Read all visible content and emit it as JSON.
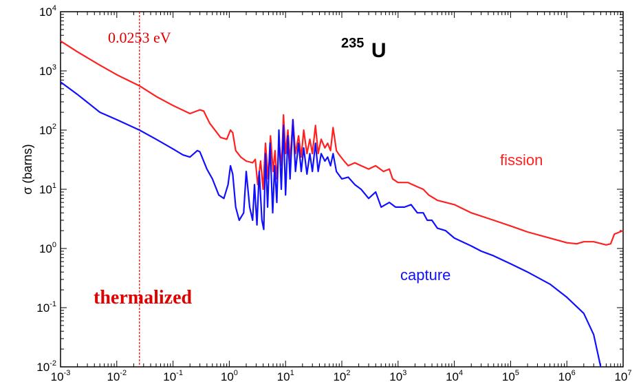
{
  "chart_data": {
    "type": "line",
    "title_mass_number": "235",
    "title_element": "U",
    "xlabel": "",
    "ylabel": "σ (barns)",
    "x_scale": "log",
    "y_scale": "log",
    "xlim": [
      0.001,
      10000000
    ],
    "ylim": [
      0.01,
      10000
    ],
    "x_tick_labels": [
      {
        "base": "10",
        "exp": "-3",
        "value": 0.001
      },
      {
        "base": "10",
        "exp": "-2",
        "value": 0.01
      },
      {
        "base": "10",
        "exp": "-1",
        "value": 0.1
      },
      {
        "base": "10",
        "exp": "0",
        "value": 1
      },
      {
        "base": "10",
        "exp": "1",
        "value": 10
      },
      {
        "base": "10",
        "exp": "2",
        "value": 100
      },
      {
        "base": "10",
        "exp": "3",
        "value": 1000
      },
      {
        "base": "10",
        "exp": "4",
        "value": 10000
      },
      {
        "base": "10",
        "exp": "5",
        "value": 100000
      },
      {
        "base": "10",
        "exp": "6",
        "value": 1000000
      },
      {
        "base": "10",
        "exp": "7",
        "value": 10000000
      }
    ],
    "y_tick_labels": [
      {
        "base": "10",
        "exp": "-2",
        "value": 0.01
      },
      {
        "base": "10",
        "exp": "-1",
        "value": 0.1
      },
      {
        "base": "10",
        "exp": "0",
        "value": 1
      },
      {
        "base": "10",
        "exp": "1",
        "value": 10
      },
      {
        "base": "10",
        "exp": "2",
        "value": 100
      },
      {
        "base": "10",
        "exp": "3",
        "value": 1000
      },
      {
        "base": "10",
        "exp": "4",
        "value": 10000
      }
    ],
    "reference_line": {
      "x": 0.0253,
      "label": "0.0253 eV",
      "color": "#e00000",
      "style": "dashed"
    },
    "annotation": {
      "text": "thermalized",
      "color": "#e00000"
    },
    "series": [
      {
        "name": "fission",
        "color": "#ff2020",
        "points": [
          [
            0.001,
            3200
          ],
          [
            0.002,
            2100
          ],
          [
            0.005,
            1250
          ],
          [
            0.01,
            860
          ],
          [
            0.0253,
            560
          ],
          [
            0.05,
            370
          ],
          [
            0.1,
            260
          ],
          [
            0.2,
            190
          ],
          [
            0.3,
            220
          ],
          [
            0.35,
            210
          ],
          [
            0.45,
            130
          ],
          [
            0.7,
            75
          ],
          [
            0.9,
            70
          ],
          [
            1.05,
            100
          ],
          [
            1.15,
            90
          ],
          [
            1.3,
            45
          ],
          [
            1.6,
            35
          ],
          [
            2.0,
            30
          ],
          [
            2.6,
            28
          ],
          [
            2.9,
            32
          ],
          [
            3.2,
            12
          ],
          [
            3.6,
            30
          ],
          [
            4.0,
            10
          ],
          [
            4.4,
            60
          ],
          [
            4.9,
            15
          ],
          [
            5.4,
            80
          ],
          [
            6.0,
            20
          ],
          [
            6.5,
            45
          ],
          [
            7.0,
            15
          ],
          [
            7.7,
            60
          ],
          [
            8.5,
            25
          ],
          [
            9.2,
            180
          ],
          [
            10.0,
            40
          ],
          [
            11.0,
            100
          ],
          [
            12.0,
            30
          ],
          [
            13.5,
            150
          ],
          [
            15.0,
            40
          ],
          [
            17.0,
            80
          ],
          [
            19.0,
            35
          ],
          [
            21.0,
            100
          ],
          [
            24.0,
            40
          ],
          [
            27.0,
            70
          ],
          [
            30.0,
            40
          ],
          [
            34.0,
            120
          ],
          [
            38.0,
            40
          ],
          [
            43.0,
            70
          ],
          [
            50.0,
            50
          ],
          [
            56.0,
            60
          ],
          [
            63.0,
            45
          ],
          [
            70.0,
            110
          ],
          [
            80.0,
            45
          ],
          [
            90.0,
            38
          ],
          [
            110.0,
            30
          ],
          [
            130.0,
            25
          ],
          [
            170.0,
            28
          ],
          [
            220.0,
            25
          ],
          [
            300.0,
            22
          ],
          [
            400.0,
            25
          ],
          [
            550.0,
            20
          ],
          [
            700.0,
            22
          ],
          [
            800.0,
            15
          ],
          [
            1000.0,
            13
          ],
          [
            1500.0,
            13
          ],
          [
            2200.0,
            11
          ],
          [
            2800.0,
            10
          ],
          [
            3500.0,
            8
          ],
          [
            5000.0,
            6.5
          ],
          [
            10000.0,
            5.5
          ],
          [
            20000.0,
            4
          ],
          [
            50000.0,
            3
          ],
          [
            100000.0,
            2.4
          ],
          [
            200000.0,
            1.9
          ],
          [
            500000.0,
            1.5
          ],
          [
            1000000.0,
            1.25
          ],
          [
            1500000.0,
            1.2
          ],
          [
            2000000.0,
            1.3
          ],
          [
            3000000.0,
            1.3
          ],
          [
            5000000.0,
            1.15
          ],
          [
            6000000.0,
            1.2
          ],
          [
            7000000.0,
            1.75
          ],
          [
            10000000.0,
            2.0
          ]
        ]
      },
      {
        "name": "capture",
        "color": "#1010ff",
        "points": [
          [
            0.001,
            650
          ],
          [
            0.002,
            400
          ],
          [
            0.005,
            200
          ],
          [
            0.01,
            150
          ],
          [
            0.0253,
            100
          ],
          [
            0.05,
            70
          ],
          [
            0.1,
            48
          ],
          [
            0.15,
            38
          ],
          [
            0.2,
            35
          ],
          [
            0.27,
            45
          ],
          [
            0.3,
            43
          ],
          [
            0.4,
            22
          ],
          [
            0.5,
            15
          ],
          [
            0.65,
            8
          ],
          [
            0.8,
            7
          ],
          [
            0.95,
            12
          ],
          [
            1.05,
            25
          ],
          [
            1.15,
            18
          ],
          [
            1.3,
            5
          ],
          [
            1.5,
            3
          ],
          [
            1.8,
            4
          ],
          [
            2.0,
            20
          ],
          [
            2.3,
            5
          ],
          [
            2.6,
            3
          ],
          [
            2.8,
            12
          ],
          [
            3.1,
            2.5
          ],
          [
            3.4,
            20
          ],
          [
            3.8,
            3
          ],
          [
            4.1,
            2.1
          ],
          [
            4.4,
            40
          ],
          [
            4.8,
            5
          ],
          [
            5.3,
            60
          ],
          [
            5.9,
            4
          ],
          [
            6.4,
            25
          ],
          [
            7.0,
            6
          ],
          [
            7.6,
            100
          ],
          [
            8.4,
            10
          ],
          [
            9.2,
            120
          ],
          [
            10.0,
            8
          ],
          [
            11.0,
            80
          ],
          [
            12.0,
            15
          ],
          [
            13.5,
            150
          ],
          [
            15.0,
            20
          ],
          [
            17.0,
            60
          ],
          [
            19.0,
            20
          ],
          [
            21.0,
            50
          ],
          [
            24.0,
            18
          ],
          [
            27.0,
            40
          ],
          [
            30.0,
            20
          ],
          [
            34.0,
            60
          ],
          [
            38.0,
            20
          ],
          [
            43.0,
            40
          ],
          [
            50.0,
            30
          ],
          [
            56.0,
            35
          ],
          [
            63.0,
            25
          ],
          [
            70.0,
            40
          ],
          [
            80.0,
            20
          ],
          [
            100.0,
            15
          ],
          [
            130.0,
            16
          ],
          [
            170.0,
            12
          ],
          [
            220.0,
            10
          ],
          [
            300.0,
            7
          ],
          [
            400.0,
            9
          ],
          [
            500.0,
            5
          ],
          [
            700.0,
            6
          ],
          [
            900.0,
            5
          ],
          [
            1300.0,
            5
          ],
          [
            1700.0,
            5.5
          ],
          [
            2200.0,
            4
          ],
          [
            2800.0,
            4
          ],
          [
            3300.0,
            3
          ],
          [
            4000.0,
            3
          ],
          [
            5000.0,
            2.2
          ],
          [
            7000.0,
            2
          ],
          [
            10000.0,
            1.5
          ],
          [
            20000.0,
            1.1
          ],
          [
            30000.0,
            0.9
          ],
          [
            50000.0,
            0.75
          ],
          [
            100000.0,
            0.55
          ],
          [
            200000.0,
            0.4
          ],
          [
            500000.0,
            0.25
          ],
          [
            1000000.0,
            0.15
          ],
          [
            2000000.0,
            0.08
          ],
          [
            3000000.0,
            0.035
          ],
          [
            4000000.0,
            0.01
          ]
        ]
      }
    ]
  }
}
